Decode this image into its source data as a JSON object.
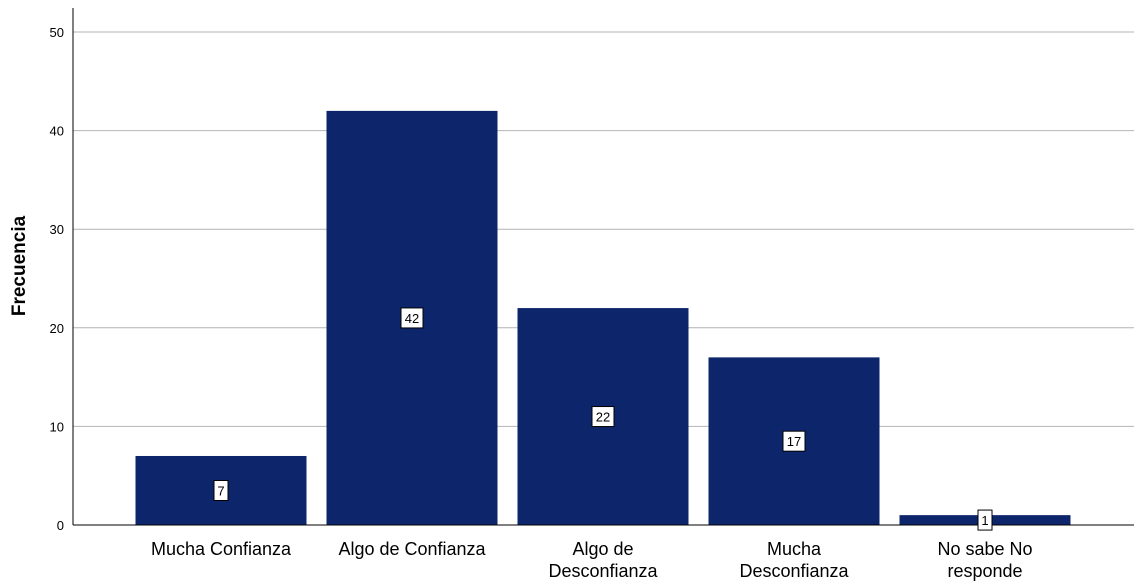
{
  "chart_data": {
    "type": "bar",
    "ylabel": "Frecuencia",
    "ylim": [
      0,
      50
    ],
    "yticks": [
      "0",
      "10",
      "20",
      "30",
      "40",
      "50"
    ],
    "categories": [
      [
        "Mucha Confianza"
      ],
      [
        "Algo de Confianza"
      ],
      [
        "Algo de",
        "Desconfianza"
      ],
      [
        "Mucha",
        "Desconfianza"
      ],
      [
        "No sabe No",
        "responde"
      ]
    ],
    "values": [
      7,
      42,
      22,
      17,
      1
    ],
    "data_labels": [
      "7",
      "42",
      "22",
      "17",
      "1"
    ],
    "grid": true,
    "legend": "none",
    "colors": {
      "bar": "#0d266b",
      "grid": "#b4b4b4",
      "axis": "#000000",
      "background": "#ffffff"
    }
  }
}
